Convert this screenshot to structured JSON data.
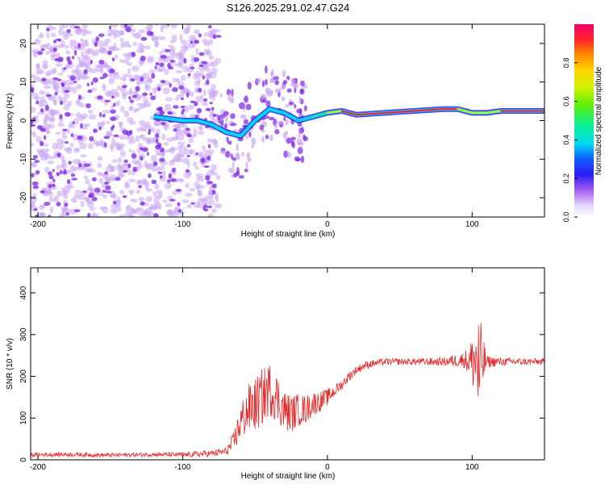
{
  "title": "S126.2025.291.02.47.G24",
  "colors": {
    "snr_line": "#e8282a",
    "dot_light": "#c9a6f2",
    "dot_dark": "#7a22e6",
    "ridge_core": "#e8282a"
  },
  "chart_data": [
    {
      "type": "heatmap",
      "name": "spectrogram",
      "xlabel": "Height of straight line (km)",
      "ylabel": "Frequency (Hz)",
      "xlim": [
        -205,
        150
      ],
      "ylim": [
        -25,
        25
      ],
      "xticks": [
        -200,
        -100,
        0,
        100
      ],
      "xtick_labels": [
        "-200",
        "-100",
        "0",
        "100"
      ],
      "yticks": [
        -20,
        -10,
        0,
        10,
        20
      ],
      "ytick_labels": [
        "-20",
        "-10",
        "0",
        "10",
        "20"
      ],
      "colorbar": {
        "label": "Normalized spectral amplitude",
        "range": [
          0.0,
          1.0
        ],
        "ticks": [
          0.0,
          0.2,
          0.4,
          0.6,
          0.8
        ],
        "tick_labels": [
          "0.0",
          "0.2",
          "0.4",
          "0.6",
          "0.8"
        ]
      },
      "ridge": {
        "x": [
          -120,
          -110,
          -100,
          -90,
          -80,
          -70,
          -60,
          -50,
          -40,
          -30,
          -20,
          -10,
          0,
          10,
          20,
          40,
          60,
          80,
          90,
          100,
          110,
          120,
          140,
          150
        ],
        "frequency": [
          1.0,
          0.5,
          0.0,
          0.0,
          -1.0,
          -3.0,
          -4.0,
          0.0,
          3.0,
          2.0,
          0.0,
          1.0,
          2.0,
          2.5,
          1.5,
          2.0,
          2.5,
          3.0,
          3.0,
          2.0,
          2.0,
          2.5,
          2.5,
          2.5
        ],
        "amplitude": [
          0.25,
          0.2,
          0.2,
          0.15,
          0.2,
          0.3,
          0.3,
          0.2,
          0.25,
          0.3,
          0.4,
          0.45,
          0.55,
          0.7,
          0.8,
          0.75,
          0.8,
          0.85,
          0.8,
          0.6,
          0.65,
          0.8,
          0.8,
          0.8
        ]
      },
      "noise_region_x": [
        -205,
        -75
      ]
    },
    {
      "type": "line",
      "name": "snr",
      "xlabel": "Height of straight line (km)",
      "ylabel": "SNR (10 * v/v)",
      "xlim": [
        -205,
        150
      ],
      "ylim": [
        0,
        460
      ],
      "xticks": [
        -200,
        -100,
        0,
        100
      ],
      "xtick_labels": [
        "-200",
        "-100",
        "0",
        "100"
      ],
      "yticks": [
        0,
        100,
        200,
        300,
        400
      ],
      "ytick_labels": [
        "0",
        "100",
        "200",
        "300",
        "400"
      ],
      "series": [
        {
          "name": "SNR",
          "x": [
            -205,
            -180,
            -150,
            -120,
            -100,
            -80,
            -70,
            -65,
            -60,
            -55,
            -50,
            -45,
            -40,
            -35,
            -30,
            -25,
            -20,
            -15,
            -10,
            -5,
            0,
            5,
            10,
            15,
            20,
            25,
            30,
            40,
            60,
            80,
            95,
            100,
            103,
            105,
            107,
            110,
            120,
            140,
            150
          ],
          "mean": [
            12,
            13,
            11,
            13,
            12,
            15,
            20,
            40,
            90,
            120,
            130,
            150,
            170,
            150,
            120,
            110,
            120,
            120,
            135,
            140,
            150,
            165,
            180,
            200,
            215,
            225,
            230,
            235,
            235,
            235,
            240,
            235,
            240,
            200,
            235,
            235,
            235,
            235,
            235
          ],
          "jitter": [
            5,
            5,
            5,
            5,
            6,
            8,
            10,
            25,
            45,
            60,
            65,
            70,
            65,
            60,
            50,
            45,
            40,
            35,
            30,
            25,
            20,
            15,
            12,
            12,
            10,
            10,
            9,
            8,
            8,
            10,
            20,
            60,
            120,
            150,
            80,
            15,
            10,
            8,
            8
          ]
        }
      ]
    }
  ]
}
